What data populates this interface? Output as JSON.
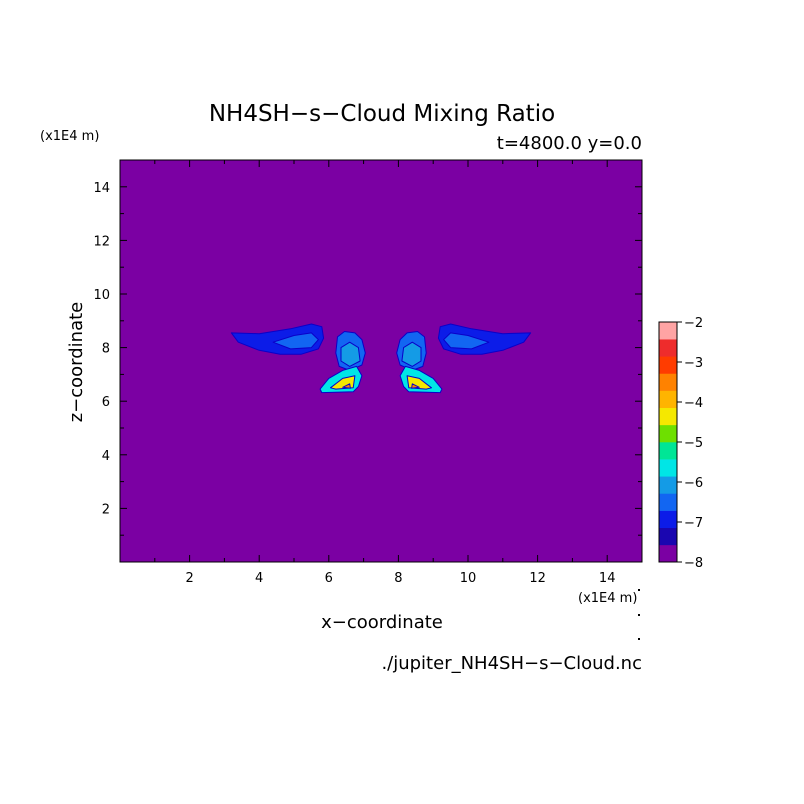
{
  "chart_data": {
    "type": "heatmap",
    "title": "NH4SH−s−Cloud Mixing Ratio",
    "subtitle": "t=4800.0 y=0.0",
    "xlabel": "x−coordinate",
    "ylabel": "z−coordinate",
    "x_unit": "(x1E4 m)",
    "y_unit": "(x1E4 m)",
    "source_file": "./jupiter_NH4SH−s−Cloud.nc",
    "xlim": [
      0,
      15
    ],
    "ylim": [
      0,
      15
    ],
    "x_ticks": [
      "2",
      "4",
      "6",
      "8",
      "10",
      "12",
      "14"
    ],
    "y_ticks": [
      "2",
      "4",
      "6",
      "8",
      "10",
      "12",
      "14"
    ],
    "background_level": -8,
    "colorbar": {
      "range": [
        -8,
        -2
      ],
      "tick_labels": [
        "−2",
        "−3",
        "−4",
        "−5",
        "−6",
        "−7",
        "−8"
      ],
      "colors": [
        "#7b00a3",
        "#1a06b0",
        "#0c1ce8",
        "#1266f2",
        "#149be6",
        "#00e6e6",
        "#00e696",
        "#6ee000",
        "#f5e800",
        "#ffb400",
        "#ff8200",
        "#ff3c00",
        "#ee2c2c",
        "#ffa4a4"
      ]
    },
    "features": [
      {
        "name": "left-anvil",
        "level": -7,
        "outline": [
          [
            3.2,
            8.55
          ],
          [
            4.0,
            8.52
          ],
          [
            4.9,
            8.7
          ],
          [
            5.5,
            8.88
          ],
          [
            5.8,
            8.78
          ],
          [
            5.85,
            8.35
          ],
          [
            5.7,
            7.95
          ],
          [
            5.2,
            7.75
          ],
          [
            4.6,
            7.75
          ],
          [
            4.0,
            7.9
          ],
          [
            3.4,
            8.2
          ]
        ]
      },
      {
        "name": "left-anvil-core",
        "level": -6.5,
        "outline": [
          [
            4.4,
            8.2
          ],
          [
            5.0,
            8.45
          ],
          [
            5.5,
            8.55
          ],
          [
            5.7,
            8.3
          ],
          [
            5.5,
            8.0
          ],
          [
            4.9,
            7.95
          ]
        ]
      },
      {
        "name": "left-column",
        "level": -6.5,
        "outline": [
          [
            6.25,
            8.4
          ],
          [
            6.45,
            8.6
          ],
          [
            6.75,
            8.55
          ],
          [
            6.95,
            8.3
          ],
          [
            7.05,
            7.8
          ],
          [
            6.95,
            7.35
          ],
          [
            6.6,
            7.15
          ],
          [
            6.3,
            7.3
          ],
          [
            6.2,
            7.8
          ]
        ]
      },
      {
        "name": "left-column-core",
        "level": -6,
        "outline": [
          [
            6.35,
            8.0
          ],
          [
            6.6,
            8.2
          ],
          [
            6.85,
            8.0
          ],
          [
            6.9,
            7.5
          ],
          [
            6.6,
            7.3
          ],
          [
            6.35,
            7.5
          ]
        ]
      },
      {
        "name": "left-base",
        "level": -5.5,
        "outline": [
          [
            5.75,
            6.45
          ],
          [
            6.0,
            6.85
          ],
          [
            6.4,
            7.15
          ],
          [
            6.8,
            7.3
          ],
          [
            6.95,
            6.95
          ],
          [
            6.85,
            6.55
          ],
          [
            6.7,
            6.35
          ],
          [
            5.8,
            6.32
          ]
        ]
      },
      {
        "name": "left-base-core",
        "level": -4.5,
        "outline": [
          [
            6.05,
            6.5
          ],
          [
            6.4,
            6.85
          ],
          [
            6.75,
            6.95
          ],
          [
            6.7,
            6.5
          ],
          [
            6.2,
            6.45
          ]
        ]
      },
      {
        "name": "left-base-peak",
        "level": -3.5,
        "outline": [
          [
            6.4,
            6.52
          ],
          [
            6.6,
            6.65
          ],
          [
            6.62,
            6.48
          ]
        ]
      },
      {
        "name": "right-anvil",
        "level": -7,
        "outline": [
          [
            11.8,
            8.55
          ],
          [
            11.0,
            8.52
          ],
          [
            10.1,
            8.7
          ],
          [
            9.5,
            8.88
          ],
          [
            9.2,
            8.78
          ],
          [
            9.15,
            8.35
          ],
          [
            9.3,
            7.95
          ],
          [
            9.8,
            7.75
          ],
          [
            10.4,
            7.75
          ],
          [
            11.0,
            7.9
          ],
          [
            11.6,
            8.2
          ]
        ]
      },
      {
        "name": "right-anvil-core",
        "level": -6.5,
        "outline": [
          [
            10.6,
            8.2
          ],
          [
            10.0,
            8.45
          ],
          [
            9.5,
            8.55
          ],
          [
            9.3,
            8.3
          ],
          [
            9.5,
            8.0
          ],
          [
            10.1,
            7.95
          ]
        ]
      },
      {
        "name": "right-column",
        "level": -6.5,
        "outline": [
          [
            8.75,
            8.4
          ],
          [
            8.55,
            8.6
          ],
          [
            8.25,
            8.55
          ],
          [
            8.05,
            8.3
          ],
          [
            7.95,
            7.8
          ],
          [
            8.05,
            7.35
          ],
          [
            8.4,
            7.15
          ],
          [
            8.7,
            7.3
          ],
          [
            8.8,
            7.8
          ]
        ]
      },
      {
        "name": "right-column-core",
        "level": -6,
        "outline": [
          [
            8.65,
            8.0
          ],
          [
            8.4,
            8.2
          ],
          [
            8.15,
            8.0
          ],
          [
            8.1,
            7.5
          ],
          [
            8.4,
            7.3
          ],
          [
            8.65,
            7.5
          ]
        ]
      },
      {
        "name": "right-base",
        "level": -5.5,
        "outline": [
          [
            9.25,
            6.45
          ],
          [
            9.0,
            6.85
          ],
          [
            8.6,
            7.15
          ],
          [
            8.2,
            7.3
          ],
          [
            8.05,
            6.95
          ],
          [
            8.15,
            6.55
          ],
          [
            8.3,
            6.35
          ],
          [
            9.2,
            6.32
          ]
        ]
      },
      {
        "name": "right-base-core",
        "level": -4.5,
        "outline": [
          [
            8.95,
            6.5
          ],
          [
            8.6,
            6.85
          ],
          [
            8.25,
            6.95
          ],
          [
            8.3,
            6.5
          ],
          [
            8.8,
            6.45
          ]
        ]
      },
      {
        "name": "right-base-peak",
        "level": -3.5,
        "outline": [
          [
            8.6,
            6.52
          ],
          [
            8.4,
            6.65
          ],
          [
            8.38,
            6.48
          ]
        ]
      }
    ]
  }
}
